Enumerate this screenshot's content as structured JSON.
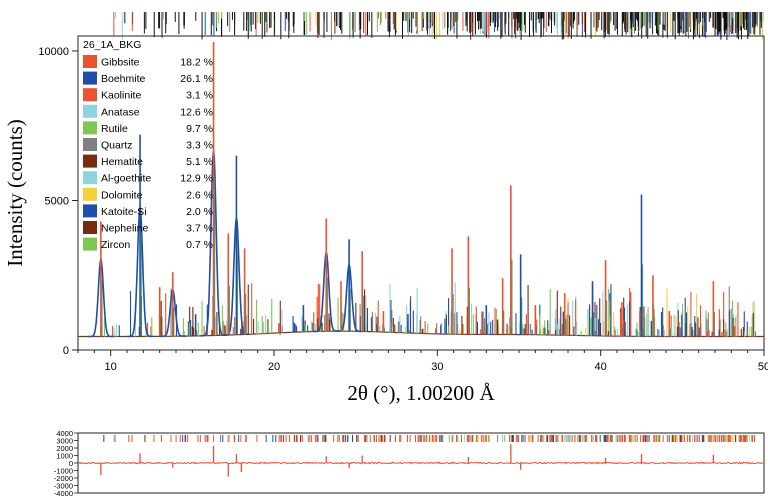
{
  "chart_data": [
    {
      "type": "line",
      "title": "",
      "xlabel": "2θ (°), 1.00200 Å",
      "ylabel": "Intensity (counts)",
      "xlim": [
        8,
        50
      ],
      "ylim": [
        0,
        10500
      ],
      "xticks": [
        10,
        20,
        30,
        40,
        50
      ],
      "yticks": [
        0,
        5000,
        10000
      ],
      "grid": false,
      "legend_title": "26_1A_BKG",
      "legend_position": "top-left",
      "series": [
        {
          "name": "Gibbsite",
          "percent": "18.2 %",
          "color": "#e8542f"
        },
        {
          "name": "Boehmite",
          "percent": "26.1 %",
          "color": "#1f4fa8"
        },
        {
          "name": "Kaolinite",
          "percent": "3.1 %",
          "color": "#e8542f"
        },
        {
          "name": "Anatase",
          "percent": "12.6 %",
          "color": "#8fd3dc"
        },
        {
          "name": "Rutile",
          "percent": "9.7 %",
          "color": "#7dc657"
        },
        {
          "name": "Quartz",
          "percent": "3.3 %",
          "color": "#808080"
        },
        {
          "name": "Hematite",
          "percent": "5.1 %",
          "color": "#7a2a10"
        },
        {
          "name": "Al-goethite",
          "percent": "12.9 %",
          "color": "#8fd3dc"
        },
        {
          "name": "Dolomite",
          "percent": "2.6 %",
          "color": "#f4d03f"
        },
        {
          "name": "Katoite-Si",
          "percent": "2.0 %",
          "color": "#1f4fa8"
        },
        {
          "name": "Nepheline",
          "percent": "3.7 %",
          "color": "#7a2a10"
        },
        {
          "name": "Zircon",
          "percent": "0.7 %",
          "color": "#7dc657"
        }
      ],
      "background_level": 450,
      "peaks": [
        {
          "x": 9.4,
          "y": 4300
        },
        {
          "x": 11.8,
          "y": 7200
        },
        {
          "x": 13.0,
          "y": 2100
        },
        {
          "x": 13.8,
          "y": 2600
        },
        {
          "x": 15.2,
          "y": 1200
        },
        {
          "x": 16.3,
          "y": 10300
        },
        {
          "x": 17.2,
          "y": 3900
        },
        {
          "x": 17.7,
          "y": 6500
        },
        {
          "x": 18.2,
          "y": 3400
        },
        {
          "x": 20.3,
          "y": 900
        },
        {
          "x": 21.8,
          "y": 1500
        },
        {
          "x": 23.2,
          "y": 4400
        },
        {
          "x": 24.1,
          "y": 2300
        },
        {
          "x": 24.6,
          "y": 3700
        },
        {
          "x": 25.4,
          "y": 3300
        },
        {
          "x": 26.7,
          "y": 1300
        },
        {
          "x": 28.2,
          "y": 1200
        },
        {
          "x": 30.9,
          "y": 3400
        },
        {
          "x": 31.9,
          "y": 3800
        },
        {
          "x": 33.0,
          "y": 1500
        },
        {
          "x": 34.0,
          "y": 2400
        },
        {
          "x": 34.5,
          "y": 5500
        },
        {
          "x": 35.1,
          "y": 3200
        },
        {
          "x": 36.0,
          "y": 1500
        },
        {
          "x": 37.8,
          "y": 1900
        },
        {
          "x": 39.5,
          "y": 2300
        },
        {
          "x": 40.3,
          "y": 3000
        },
        {
          "x": 41.3,
          "y": 1600
        },
        {
          "x": 42.5,
          "y": 5200
        },
        {
          "x": 43.2,
          "y": 2500
        },
        {
          "x": 44.2,
          "y": 1300
        },
        {
          "x": 45.8,
          "y": 900
        },
        {
          "x": 46.9,
          "y": 2300
        },
        {
          "x": 48.2,
          "y": 800
        }
      ]
    },
    {
      "type": "line",
      "title": "",
      "xlabel": "",
      "ylabel": "",
      "xlim": [
        8,
        50
      ],
      "ylim": [
        -4000,
        4000
      ],
      "yticks": [
        4000,
        3000,
        2000,
        1000,
        0,
        -1000,
        -2000,
        -3000,
        -4000
      ],
      "grid": false,
      "series": [
        {
          "color": "#e8542f"
        }
      ],
      "spikes": [
        {
          "x": 9.4,
          "y": -1600
        },
        {
          "x": 11.8,
          "y": 1300
        },
        {
          "x": 13.8,
          "y": -600
        },
        {
          "x": 16.3,
          "y": 2300
        },
        {
          "x": 17.2,
          "y": -1800
        },
        {
          "x": 17.7,
          "y": 1200
        },
        {
          "x": 18.0,
          "y": -1200
        },
        {
          "x": 23.2,
          "y": 900
        },
        {
          "x": 24.6,
          "y": -700
        },
        {
          "x": 25.4,
          "y": 1000
        },
        {
          "x": 31.9,
          "y": 800
        },
        {
          "x": 34.5,
          "y": 2500
        },
        {
          "x": 35.1,
          "y": -900
        },
        {
          "x": 40.3,
          "y": 700
        },
        {
          "x": 42.5,
          "y": 1200
        },
        {
          "x": 46.9,
          "y": 1100
        }
      ]
    }
  ]
}
